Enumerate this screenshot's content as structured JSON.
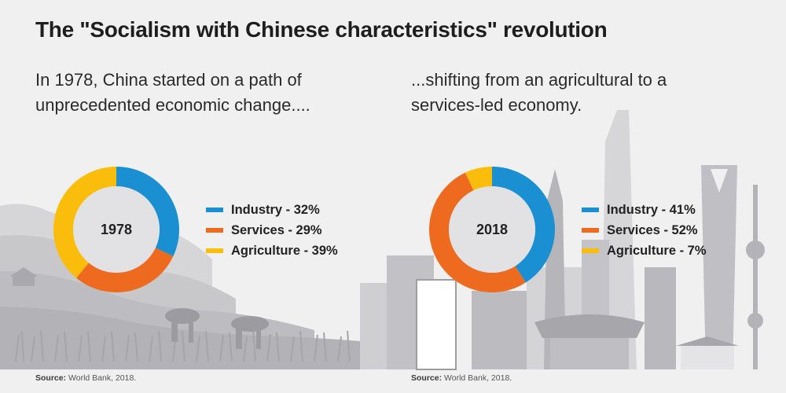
{
  "title": "The \"Socialism with Chinese characteristics\" revolution",
  "subtitle_left": "In 1978, China started on a path of\nunprecedented economic change....",
  "subtitle_right": "...shifting from an agricultural to a\nservices-led economy.",
  "colors": {
    "industry": "#1a8fd1",
    "services": "#ee6a1f",
    "agriculture": "#fbbd0c",
    "donut_center": "#e2e2e4",
    "background": "#f0f0f1",
    "skyline": "#c9c9cc"
  },
  "chart_data": [
    {
      "type": "pie",
      "center_label": "1978",
      "categories": [
        "Industry",
        "Services",
        "Agriculture"
      ],
      "values": [
        32,
        29,
        39
      ],
      "legend_labels": [
        "Industry - 32%",
        "Services - 29%",
        "Agriculture - 39%"
      ],
      "legend_placement": "right"
    },
    {
      "type": "pie",
      "center_label": "2018",
      "categories": [
        "Industry",
        "Services",
        "Agriculture"
      ],
      "values": [
        41,
        52,
        7
      ],
      "legend_labels": [
        "Industry - 41%",
        "Services - 52%",
        "Agriculture - 7%"
      ],
      "legend_placement": "right"
    }
  ],
  "source": {
    "prefix": "Source:",
    "text": "World Bank, 2018."
  }
}
